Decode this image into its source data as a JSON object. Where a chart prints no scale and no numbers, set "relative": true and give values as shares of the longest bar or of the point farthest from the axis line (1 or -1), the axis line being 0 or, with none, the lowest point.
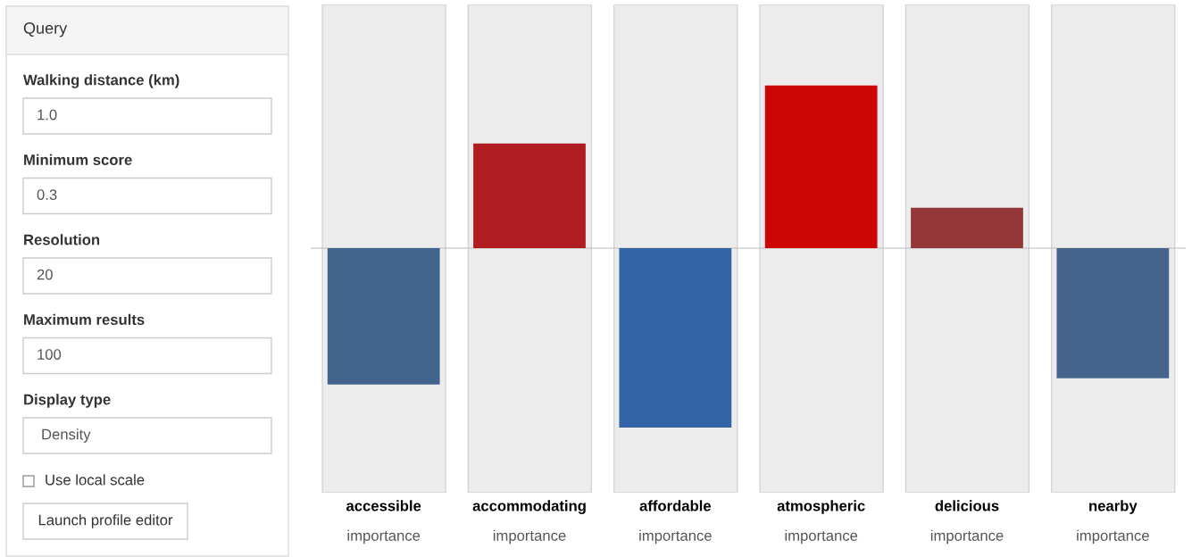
{
  "chart_data": {
    "type": "bar",
    "relative": true,
    "categories": [
      "accessible",
      "accommodating",
      "affordable",
      "atmospheric",
      "delicious",
      "nearby"
    ],
    "values": [
      -0.76,
      0.583,
      -1,
      0.907,
      0.225,
      -0.725
    ],
    "colors": [
      "#41648f",
      "#b01c1f",
      "#3264a6",
      "#cc0505",
      "#943739",
      "#44648e"
    ],
    "annotations": [
      "Query",
      "Walking distance (km)",
      "1.0",
      "Minimum score",
      "0.3",
      "Resolution",
      "20",
      "Maximum results",
      "100",
      "Display type",
      "Density",
      "Use local scale",
      "Launch profile editor",
      "importance",
      "importance",
      "importance",
      "importance",
      "importance",
      "importance"
    ]
  }
}
